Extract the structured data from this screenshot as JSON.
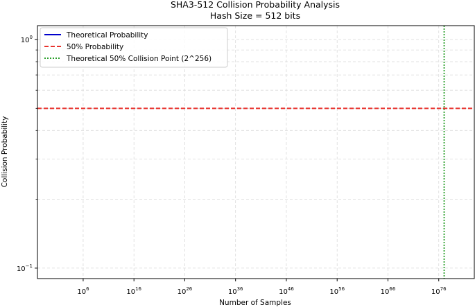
{
  "chart_data": {
    "type": "line",
    "title": "SHA3-512 Collision Probability Analysis",
    "subtitle": "Hash Size = 512 bits",
    "xlabel": "Number of Samples",
    "ylabel": "Collision Probability",
    "x_scale": "log",
    "y_scale": "log",
    "xlim": [
      0.001,
      1e+83
    ],
    "ylim": [
      0.09,
      1.15
    ],
    "grid": true,
    "legend_position": "upper left",
    "x_ticks": [
      {
        "value": 1000000.0,
        "label": "10",
        "exp": "6"
      },
      {
        "value": 1e+16,
        "label": "10",
        "exp": "16"
      },
      {
        "value": 1e+26,
        "label": "10",
        "exp": "26"
      },
      {
        "value": 1e+36,
        "label": "10",
        "exp": "36"
      },
      {
        "value": 1e+46,
        "label": "10",
        "exp": "46"
      },
      {
        "value": 1e+56,
        "label": "10",
        "exp": "56"
      },
      {
        "value": 1e+66,
        "label": "10",
        "exp": "66"
      },
      {
        "value": 1e+76,
        "label": "10",
        "exp": "76"
      }
    ],
    "y_ticks": [
      {
        "value": 1,
        "label": "10",
        "exp": "0"
      },
      {
        "value": 0.1,
        "label": "10",
        "exp": "−1"
      }
    ],
    "series": [
      {
        "name": "Theoretical Probability",
        "color": "#0000cc",
        "style": "solid",
        "values": []
      },
      {
        "name": "50% Probability",
        "color": "#e8332d",
        "style": "dashed",
        "kind": "hline",
        "y": 0.5
      },
      {
        "name": "Theoretical 50% Collision Point (2^256)",
        "color": "#2ca02c",
        "style": "dotted",
        "kind": "vline",
        "x": 1.158e+77
      }
    ]
  }
}
